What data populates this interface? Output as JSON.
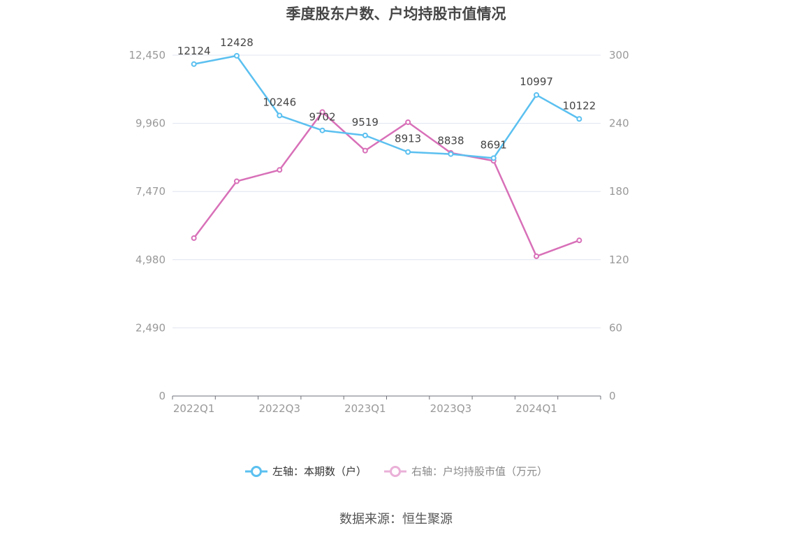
{
  "chart_data": {
    "type": "line",
    "title": "季度股东户数、户均持股市值情况",
    "categories": [
      "2022Q1",
      "2022Q2",
      "2022Q3",
      "2022Q4",
      "2023Q1",
      "2023Q2",
      "2023Q3",
      "2023Q4",
      "2024Q1",
      "2024Q2"
    ],
    "x_tick_labels": [
      "2022Q1",
      "2022Q3",
      "2023Q1",
      "2023Q3",
      "2024Q1"
    ],
    "y_left": {
      "ticks": [
        "0",
        "2,490",
        "4,980",
        "7,470",
        "9,960",
        "12,450"
      ],
      "ylim": [
        0,
        12450
      ]
    },
    "y_right": {
      "ticks": [
        "0",
        "60",
        "120",
        "180",
        "240",
        "300"
      ],
      "ylim": [
        0,
        300
      ]
    },
    "series": [
      {
        "name": "左轴：本期数（户）",
        "axis": "left",
        "color": "#5bc0f0",
        "values": [
          12124,
          12428,
          10246,
          9702,
          9519,
          8913,
          8838,
          8691,
          10997,
          10122
        ],
        "labels": [
          "12124",
          "12428",
          "10246",
          "9702",
          "9519",
          "8913",
          "8838",
          "8691",
          "10997",
          "10122"
        ]
      },
      {
        "name": "右轴：户均持股市值（万元）",
        "axis": "right",
        "color": "#d870b8",
        "values": [
          139,
          189,
          199,
          250,
          216,
          241,
          214,
          207,
          123,
          137
        ]
      }
    ],
    "grid": true,
    "legend_position": "bottom"
  },
  "source": "数据来源：恒生聚源"
}
